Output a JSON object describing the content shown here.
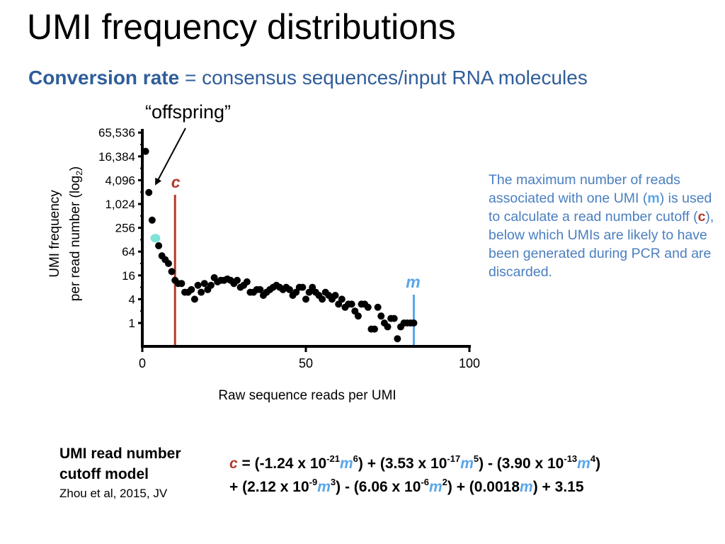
{
  "slide": {
    "title": "UMI frequency distributions",
    "subtitle_bold": "Conversion rate",
    "subtitle_rest": " = consensus sequences/input RNA molecules",
    "callout": "“offspring”",
    "note": {
      "part1": "The maximum number of reads associated with one UMI (",
      "m": "m",
      "part2": ") is used to calculate a read number cutoff (",
      "c": "c",
      "part3": "), below which UMIs are likely to have been generated during PCR and are discarded."
    },
    "model": {
      "title": "UMI read number cutoff model",
      "citation": "Zhou et al, 2015, JV"
    },
    "formula": {
      "c": "c",
      "m": "m",
      "t_eq_1": " = (-1.24 x 10",
      "e1": "-21",
      "t2": ") + (3.53 x 10",
      "e2": "-17",
      "t3": ") - (3.90 x 10",
      "e3": "-13",
      "p6": "6",
      "p5": "5",
      "p4": "4",
      "t4": "+ (2.12 x 10",
      "e4": "-9",
      "t5": ") - (6.06 x 10",
      "e5": "-6",
      "p3": "3",
      "p2": "2",
      "t6": ") + (0.0018",
      "t7": ") + 3.15"
    }
  },
  "chart_data": {
    "type": "scatter",
    "xlabel": "Raw sequence reads per UMI",
    "ylabel_line1": "UMI frequency",
    "ylabel_line2": "per read number (log",
    "ylabel_sub": "2",
    "ylabel_close": ")",
    "xlim": [
      0,
      100
    ],
    "xticks": [
      0,
      50,
      100
    ],
    "y_scale": "log2",
    "yticks": [
      1,
      4,
      16,
      64,
      256,
      1024,
      4096,
      16384,
      65536
    ],
    "ytick_labels": [
      "1",
      "4",
      "16",
      "64",
      "256",
      "1,024",
      "4,096",
      "16,384",
      "65,536"
    ],
    "cutoff_c": {
      "label": "c",
      "x": 10,
      "color": "#b23a2a"
    },
    "max_m": {
      "label": "m",
      "x": 83,
      "color": "#58a6ea"
    },
    "highlight_point": {
      "x": 4,
      "y": 140,
      "color": "#7fe3d8"
    },
    "points": [
      [
        1,
        22000
      ],
      [
        2,
        2000
      ],
      [
        3,
        400
      ],
      [
        5,
        90
      ],
      [
        6,
        50
      ],
      [
        7,
        40
      ],
      [
        8,
        32
      ],
      [
        9,
        20
      ],
      [
        10,
        12
      ],
      [
        11,
        10
      ],
      [
        12,
        10
      ],
      [
        13,
        6
      ],
      [
        14,
        6
      ],
      [
        15,
        7
      ],
      [
        16,
        4
      ],
      [
        17,
        9
      ],
      [
        18,
        6
      ],
      [
        19,
        10
      ],
      [
        20,
        7
      ],
      [
        21,
        9
      ],
      [
        22,
        14
      ],
      [
        23,
        11
      ],
      [
        24,
        12
      ],
      [
        25,
        12
      ],
      [
        26,
        13
      ],
      [
        27,
        12
      ],
      [
        28,
        10
      ],
      [
        29,
        12
      ],
      [
        30,
        8
      ],
      [
        31,
        9
      ],
      [
        32,
        11
      ],
      [
        33,
        6
      ],
      [
        34,
        6
      ],
      [
        35,
        7
      ],
      [
        36,
        7
      ],
      [
        37,
        5
      ],
      [
        38,
        6
      ],
      [
        39,
        7
      ],
      [
        40,
        8
      ],
      [
        41,
        9
      ],
      [
        42,
        8
      ],
      [
        43,
        7
      ],
      [
        44,
        8
      ],
      [
        45,
        7
      ],
      [
        46,
        5
      ],
      [
        47,
        6
      ],
      [
        48,
        8
      ],
      [
        49,
        8
      ],
      [
        50,
        4
      ],
      [
        51,
        6
      ],
      [
        52,
        8
      ],
      [
        53,
        6
      ],
      [
        54,
        5
      ],
      [
        55,
        4
      ],
      [
        56,
        6
      ],
      [
        57,
        5
      ],
      [
        58,
        4
      ],
      [
        59,
        5
      ],
      [
        60,
        3
      ],
      [
        61,
        4
      ],
      [
        62,
        2.5
      ],
      [
        63,
        3
      ],
      [
        64,
        3
      ],
      [
        65,
        2
      ],
      [
        66,
        1.5
      ],
      [
        67,
        3
      ],
      [
        68,
        3
      ],
      [
        69,
        2.5
      ],
      [
        70,
        0.7
      ],
      [
        71,
        0.7
      ],
      [
        72,
        2.5
      ],
      [
        73,
        1.5
      ],
      [
        74,
        1
      ],
      [
        75,
        0.8
      ],
      [
        76,
        1.3
      ],
      [
        77,
        1.3
      ],
      [
        78,
        0.4
      ],
      [
        79,
        0.8
      ],
      [
        80,
        1
      ],
      [
        81,
        1
      ],
      [
        82,
        1
      ],
      [
        83,
        1
      ]
    ]
  }
}
